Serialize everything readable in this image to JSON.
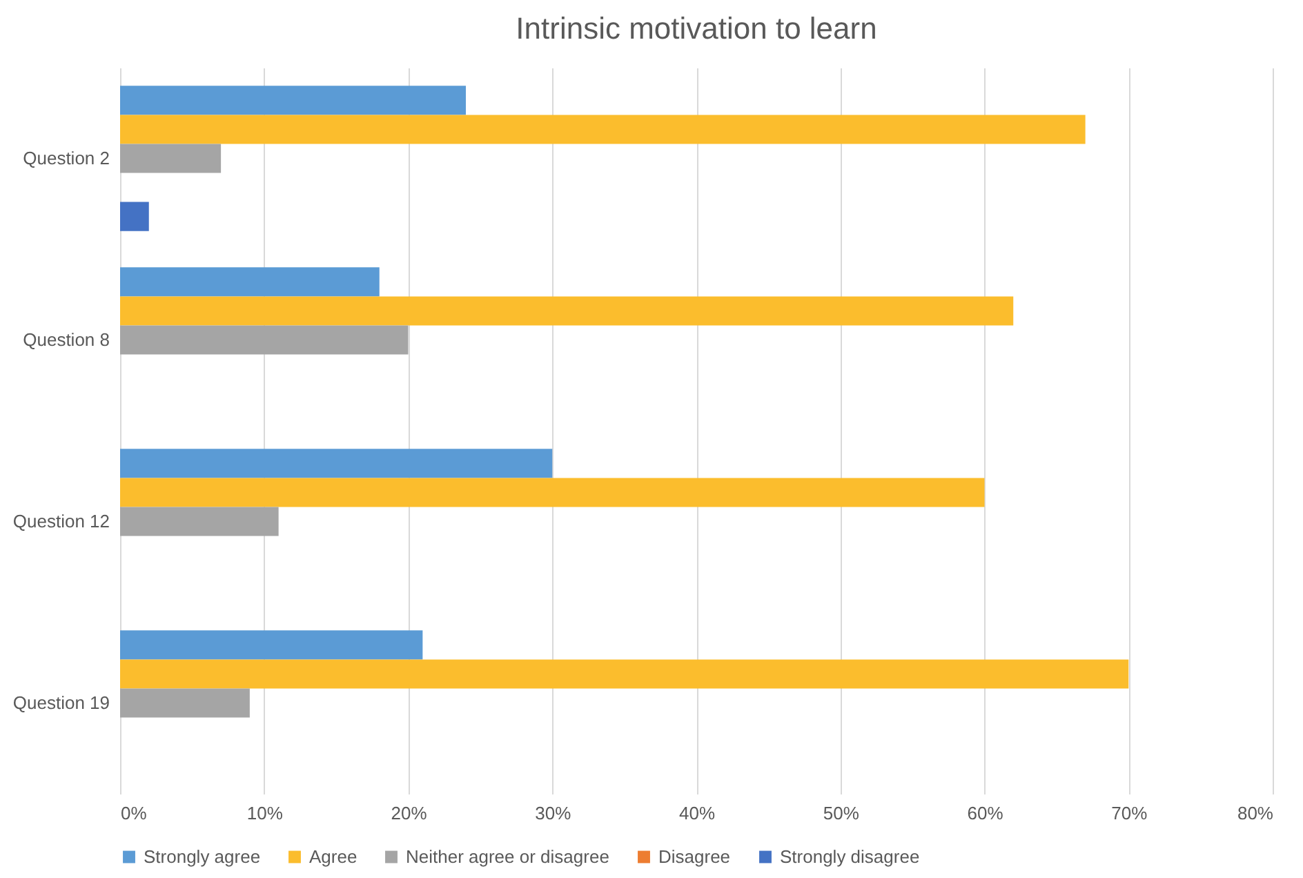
{
  "chart_data": {
    "type": "bar",
    "orientation": "horizontal",
    "title": "Intrinsic motivation to learn",
    "categories": [
      "Question 2",
      "Question 8",
      "Question 12",
      "Question 19"
    ],
    "series": [
      {
        "name": "Strongly agree",
        "color": "#5b9bd5",
        "values": [
          24,
          18,
          30,
          21
        ]
      },
      {
        "name": "Agree",
        "color": "#fbbd2d",
        "values": [
          67,
          62,
          60,
          70
        ]
      },
      {
        "name": "Neither agree or disagree",
        "color": "#a5a5a5",
        "values": [
          7,
          20,
          11,
          9
        ]
      },
      {
        "name": "Disagree",
        "color": "#ed7d31",
        "values": [
          0,
          0,
          0,
          0
        ]
      },
      {
        "name": "Strongly disagree",
        "color": "#4472c4",
        "values": [
          2,
          0,
          0,
          0
        ]
      }
    ],
    "xlim": [
      0,
      80
    ],
    "xticks": [
      {
        "value": 0,
        "label": "0%"
      },
      {
        "value": 10,
        "label": "10%"
      },
      {
        "value": 20,
        "label": "20%"
      },
      {
        "value": 30,
        "label": "30%"
      },
      {
        "value": 40,
        "label": "40%"
      },
      {
        "value": 50,
        "label": "50%"
      },
      {
        "value": 60,
        "label": "60%"
      },
      {
        "value": 70,
        "label": "70%"
      },
      {
        "value": 80,
        "label": "80%"
      }
    ],
    "grid": "x",
    "legend": "bottom"
  }
}
